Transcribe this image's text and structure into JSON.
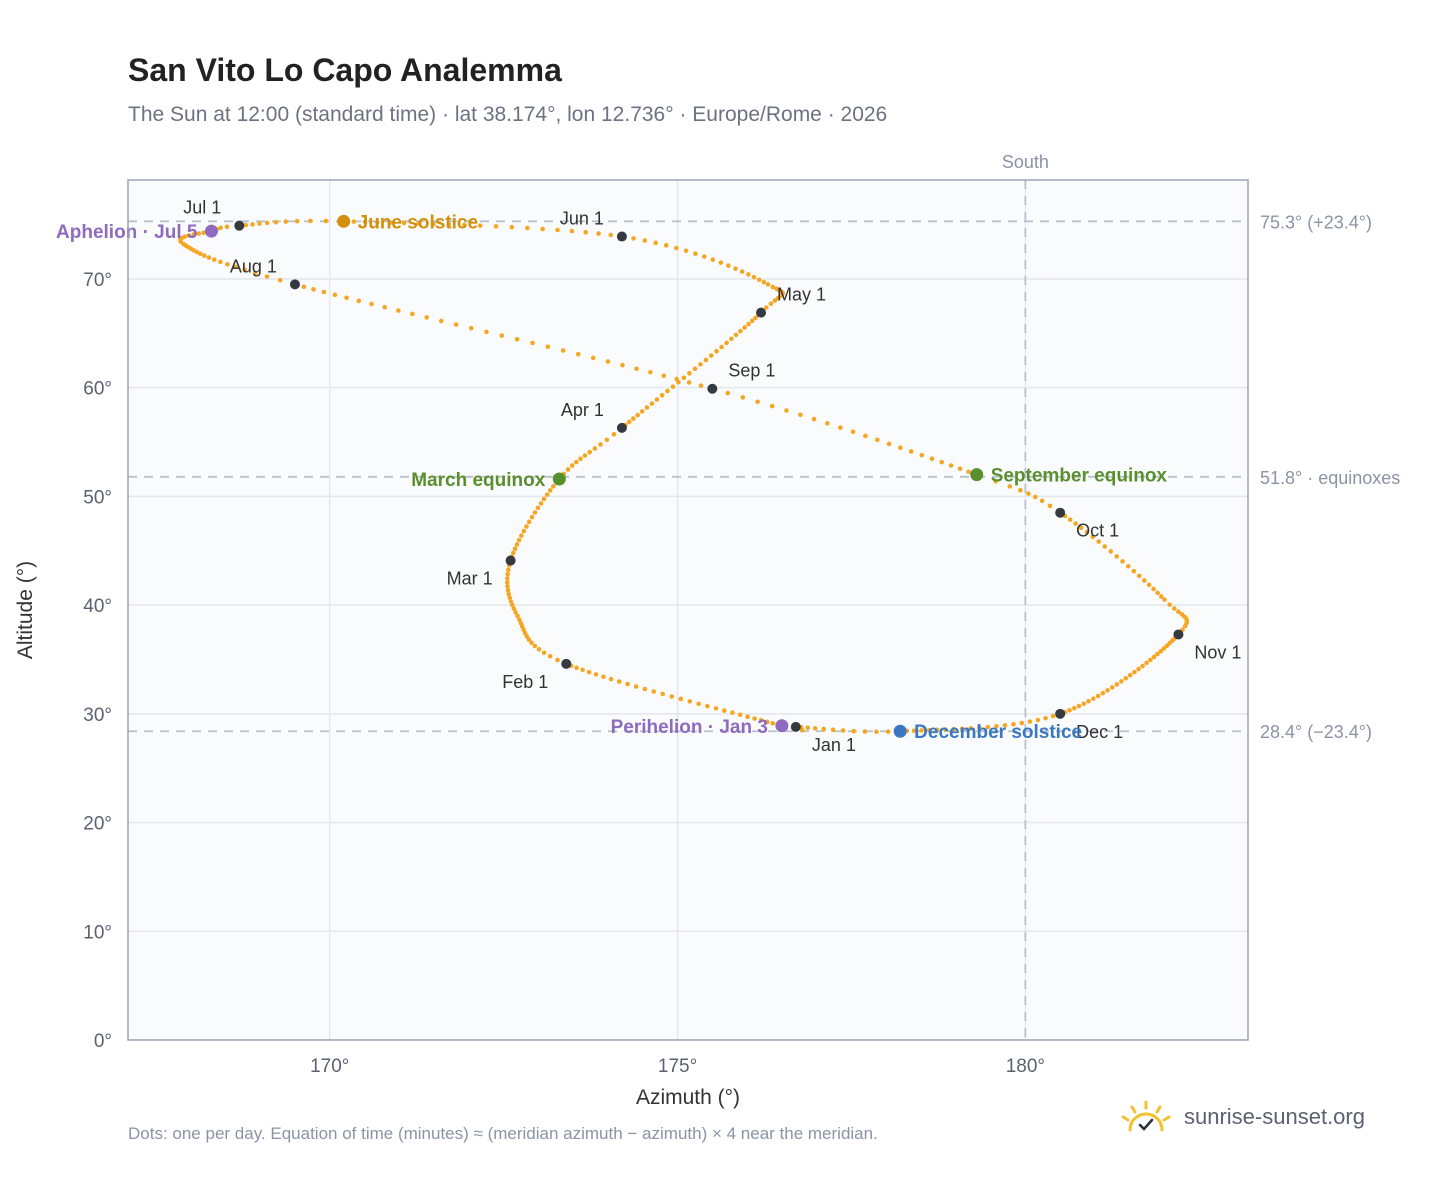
{
  "title": "San Vito Lo Capo Analemma",
  "subtitle": "The Sun at 12:00 (standard time) · lat 38.174°, lon 12.736° · Europe/Rome · 2026",
  "footnote": "Dots: one per day. Equation of time (minutes) ≈ (meridian azimuth − azimuth) × 4 near the meridian.",
  "brand": {
    "name": "sunrise-sunset.org",
    "icon": "sun-check-icon"
  },
  "colors": {
    "curve": "#f5a623",
    "month_dot": "#343a40",
    "equinox": "#5a8f2e",
    "june_solstice": "#d4900c",
    "december_solstice": "#3b78c2",
    "apsides": "#8e6bbf",
    "grid": "#e3e8ee",
    "plot_bg": "#f9fbfd",
    "ref_line": "#b8c2cc"
  },
  "chart_data": {
    "type": "scatter",
    "title": "San Vito Lo Capo Analemma",
    "xlabel": "Azimuth (°)",
    "ylabel": "Altitude (°)",
    "xlim": [
      167.1,
      183.2
    ],
    "ylim": [
      0,
      79.1
    ],
    "grid": true,
    "x_ticks": [
      170,
      175,
      180
    ],
    "x_tick_labels": [
      "170°",
      "175°",
      "180°"
    ],
    "y_ticks": [
      0,
      10,
      20,
      30,
      40,
      50,
      60,
      70
    ],
    "y_tick_labels": [
      "0°",
      "10°",
      "20°",
      "30°",
      "40°",
      "50°",
      "60°",
      "70°"
    ],
    "meridian": {
      "azimuth": 180,
      "label": "South"
    },
    "reference_lines": [
      {
        "altitude": 75.3,
        "label": "75.3° (+23.4°)"
      },
      {
        "altitude": 51.8,
        "label": "51.8° · equinoxes"
      },
      {
        "altitude": 28.4,
        "label": "28.4° (−23.4°)"
      }
    ],
    "month_points": [
      {
        "label": "Jan 1",
        "az": 176.7,
        "alt": 28.8,
        "pos": "below-right"
      },
      {
        "label": "Feb 1",
        "az": 173.4,
        "alt": 34.6,
        "pos": "below-left"
      },
      {
        "label": "Mar 1",
        "az": 172.6,
        "alt": 44.1,
        "pos": "below-left"
      },
      {
        "label": "Apr 1",
        "az": 174.2,
        "alt": 56.3,
        "pos": "above-left"
      },
      {
        "label": "May 1",
        "az": 176.2,
        "alt": 66.9,
        "pos": "above-right"
      },
      {
        "label": "Jun 1",
        "az": 174.2,
        "alt": 73.9,
        "pos": "above-left"
      },
      {
        "label": "Jul 1",
        "az": 168.7,
        "alt": 74.9,
        "pos": "above-left"
      },
      {
        "label": "Aug 1",
        "az": 169.5,
        "alt": 69.5,
        "pos": "above-left"
      },
      {
        "label": "Sep 1",
        "az": 175.5,
        "alt": 59.9,
        "pos": "above-right"
      },
      {
        "label": "Oct 1",
        "az": 180.5,
        "alt": 48.5,
        "pos": "below-right"
      },
      {
        "label": "Nov 1",
        "az": 182.2,
        "alt": 37.3,
        "pos": "below-right"
      },
      {
        "label": "Dec 1",
        "az": 180.5,
        "alt": 30.0,
        "pos": "below-right"
      }
    ],
    "events": [
      {
        "label": "June solstice",
        "az": 170.2,
        "alt": 75.3,
        "color": "#d4900c",
        "pos": "right"
      },
      {
        "label": "December solstice",
        "az": 178.2,
        "alt": 28.4,
        "color": "#3b78c2",
        "pos": "right"
      },
      {
        "label": "March equinox",
        "az": 173.3,
        "alt": 51.6,
        "color": "#5a8f2e",
        "pos": "left"
      },
      {
        "label": "September equinox",
        "az": 179.3,
        "alt": 52.0,
        "color": "#5a8f2e",
        "pos": "right"
      },
      {
        "label": "Perihelion · Jan 3",
        "az": 176.5,
        "alt": 28.9,
        "color": "#8e6bbf",
        "pos": "left"
      },
      {
        "label": "Aphelion · Jul 5",
        "az": 168.3,
        "alt": 74.4,
        "color": "#8e6bbf",
        "pos": "left"
      }
    ],
    "curve_keypoints": [
      {
        "doy": 1,
        "az": 176.7,
        "alt": 28.8
      },
      {
        "doy": 3,
        "az": 176.5,
        "alt": 28.9
      },
      {
        "doy": 32,
        "az": 173.4,
        "alt": 34.6
      },
      {
        "doy": 46,
        "az": 172.7,
        "alt": 39.0
      },
      {
        "doy": 60,
        "az": 172.6,
        "alt": 44.1
      },
      {
        "doy": 79,
        "az": 173.3,
        "alt": 51.6
      },
      {
        "doy": 91,
        "az": 174.2,
        "alt": 56.3
      },
      {
        "doy": 121,
        "az": 176.2,
        "alt": 66.9
      },
      {
        "doy": 134,
        "az": 176.3,
        "alt": 69.5
      },
      {
        "doy": 152,
        "az": 174.2,
        "alt": 73.9
      },
      {
        "doy": 172,
        "az": 170.2,
        "alt": 75.3
      },
      {
        "doy": 182,
        "az": 168.7,
        "alt": 74.9
      },
      {
        "doy": 186,
        "az": 168.3,
        "alt": 74.4
      },
      {
        "doy": 196,
        "az": 167.9,
        "alt": 73.2
      },
      {
        "doy": 213,
        "az": 169.5,
        "alt": 69.5
      },
      {
        "doy": 244,
        "az": 175.5,
        "alt": 59.9
      },
      {
        "doy": 266,
        "az": 179.3,
        "alt": 52.0
      },
      {
        "doy": 274,
        "az": 180.5,
        "alt": 48.5
      },
      {
        "doy": 294,
        "az": 182.0,
        "alt": 40.5
      },
      {
        "doy": 305,
        "az": 182.2,
        "alt": 37.3
      },
      {
        "doy": 335,
        "az": 180.5,
        "alt": 30.0
      },
      {
        "doy": 355,
        "az": 178.2,
        "alt": 28.4
      },
      {
        "doy": 366,
        "az": 176.7,
        "alt": 28.8
      }
    ]
  }
}
